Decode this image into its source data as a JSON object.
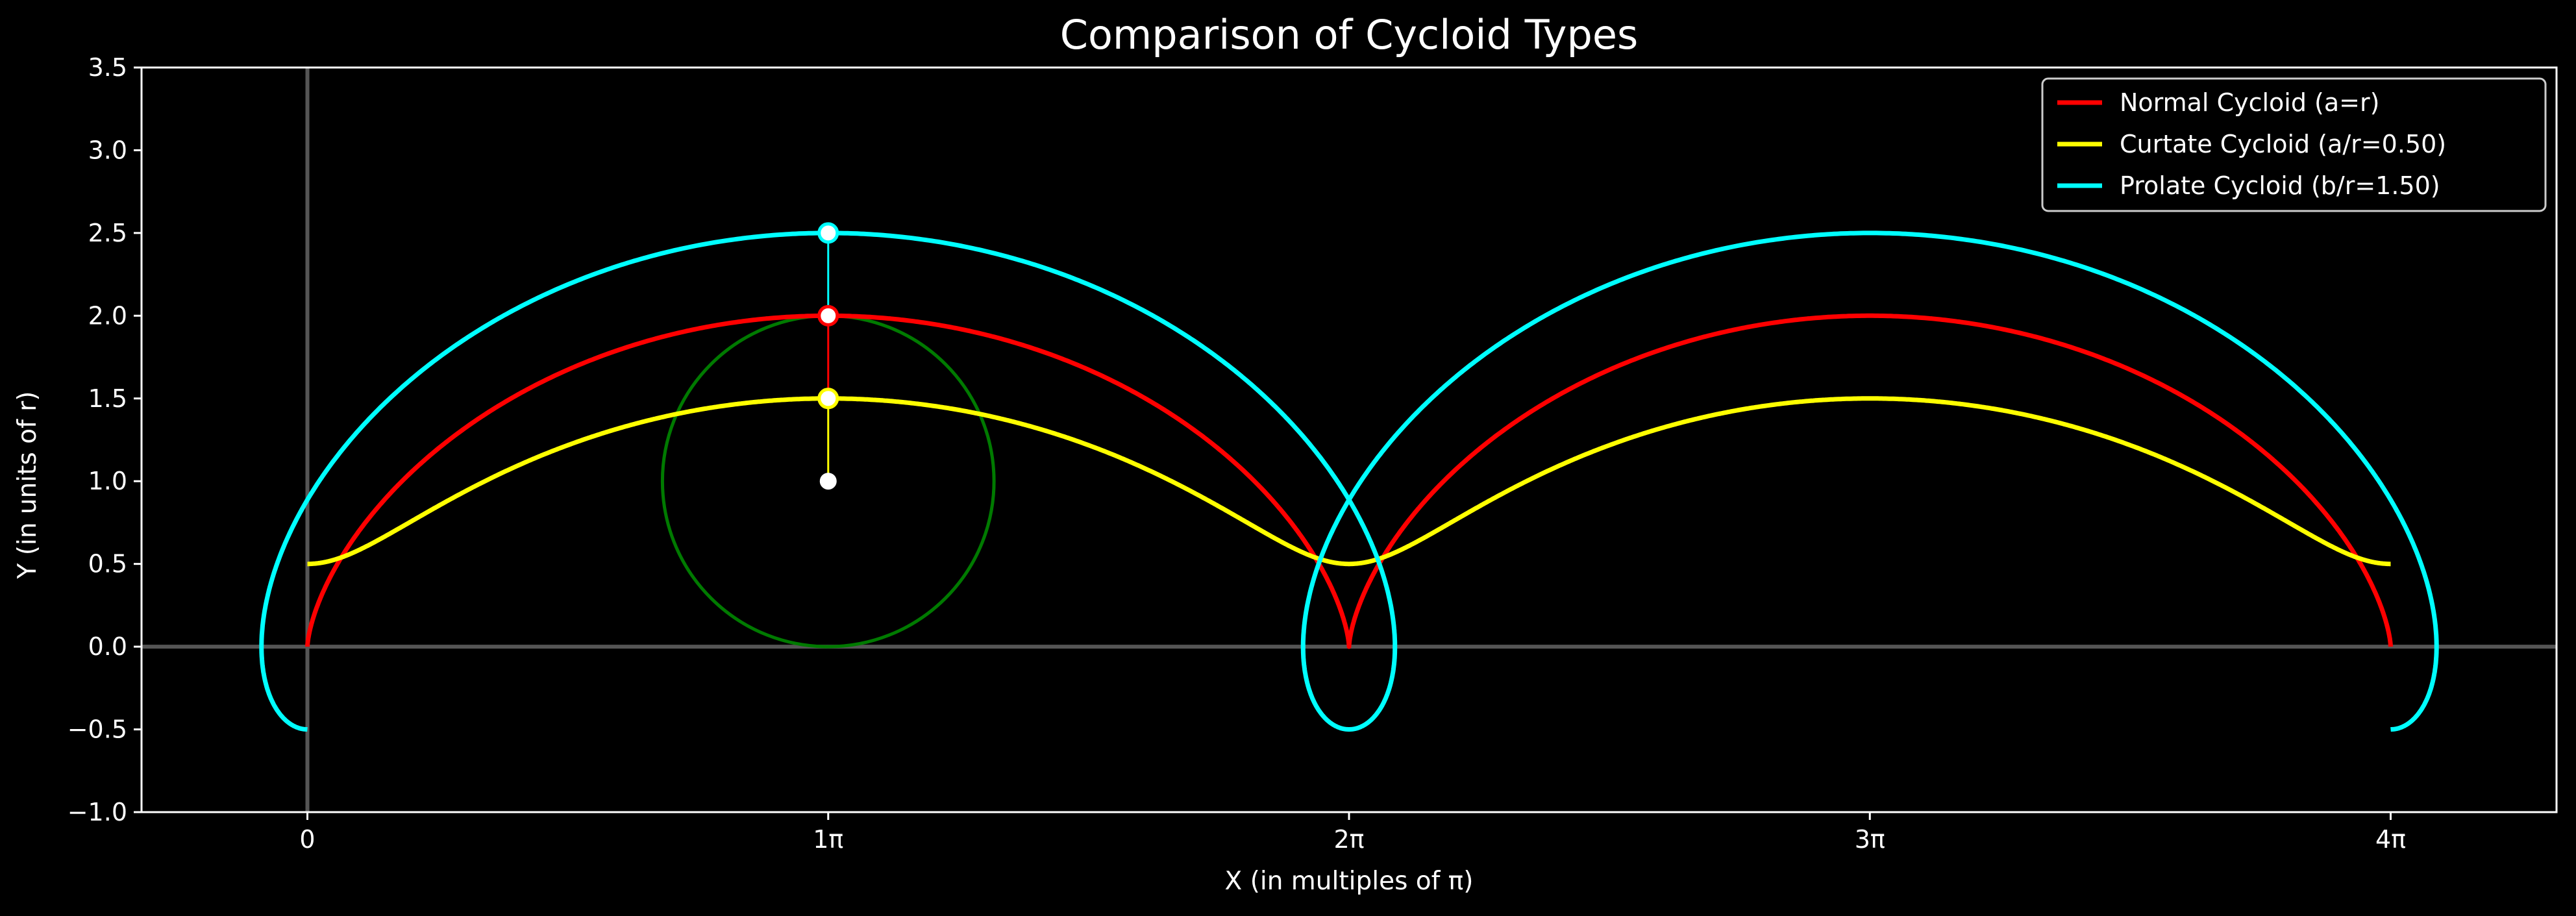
{
  "chart_data": {
    "type": "line",
    "title": "Comparison of Cycloid Types",
    "xlabel": "X (in multiples of π)",
    "ylabel": "Y (in units of r)",
    "xlim": [
      -0.3185,
      4.3185
    ],
    "ylim": [
      -1.0,
      3.5
    ],
    "x_unit": "π",
    "xticks": [
      0,
      1,
      2,
      3,
      4
    ],
    "xtick_labels": [
      "0",
      "1π",
      "2π",
      "3π",
      "4π"
    ],
    "yticks": [
      -1.0,
      -0.5,
      0.0,
      0.5,
      1.0,
      1.5,
      2.0,
      2.5,
      3.0,
      3.5
    ],
    "ytick_labels": [
      "−1.0",
      "−0.5",
      "0.0",
      "0.5",
      "1.0",
      "1.5",
      "2.0",
      "2.5",
      "3.0",
      "3.5"
    ],
    "grid": false,
    "legend_position": "top-right",
    "background": "#000000",
    "foreground": "#ffffff",
    "reference_lines": {
      "x": 0,
      "y": 0,
      "color": "#555555"
    },
    "series": [
      {
        "name": "Normal Cycloid (a=r)",
        "color": "#ff0000",
        "ratio": 1.0
      },
      {
        "name": "Curtate Cycloid (a/r=0.50)",
        "color": "#ffff00",
        "ratio": 0.5
      },
      {
        "name": "Prolate Cycloid (b/r=1.50)",
        "color": "#00ffff",
        "ratio": 1.5
      }
    ],
    "parameter_range": [
      0,
      4
    ],
    "rolling_circle": {
      "center": [
        1,
        1
      ],
      "radius": 1,
      "color": "#007a00",
      "center_color": "#ffffff",
      "spoke_points": [
        {
          "y": 1.5,
          "color": "#ffff00"
        },
        {
          "y": 2.0,
          "color": "#ff0000"
        },
        {
          "y": 2.5,
          "color": "#00ffff"
        }
      ]
    }
  }
}
